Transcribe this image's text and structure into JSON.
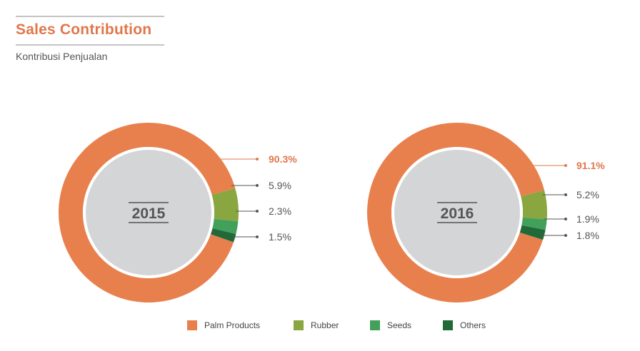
{
  "header": {
    "title": "Sales Contribution",
    "subtitle": "Kontribusi Penjualan"
  },
  "colors": {
    "accent": "#e0774a",
    "palm": "#e8804e",
    "rubber": "#8aa640",
    "seeds": "#42a05a",
    "others": "#22693a",
    "center": "#d4d5d6",
    "ring_gap": "#ffffff",
    "label_text": "#555555"
  },
  "chart_data": [
    {
      "type": "pie",
      "variant": "donut",
      "center_label": "2015",
      "categories": [
        "Palm Products",
        "Rubber",
        "Seeds",
        "Others"
      ],
      "values": [
        90.3,
        5.9,
        2.3,
        1.5
      ],
      "value_labels": [
        "90.3%",
        "5.9%",
        "2.3%",
        "1.5%"
      ]
    },
    {
      "type": "pie",
      "variant": "donut",
      "center_label": "2016",
      "categories": [
        "Palm Products",
        "Rubber",
        "Seeds",
        "Others"
      ],
      "values": [
        91.1,
        5.2,
        1.9,
        1.8
      ],
      "value_labels": [
        "91.1%",
        "5.2%",
        "1.9%",
        "1.8%"
      ]
    }
  ],
  "legend": {
    "position": "bottom",
    "items": [
      {
        "label": "Palm Products",
        "color": "#e8804e"
      },
      {
        "label": "Rubber",
        "color": "#8aa640"
      },
      {
        "label": "Seeds",
        "color": "#42a05a"
      },
      {
        "label": "Others",
        "color": "#22693a"
      }
    ]
  }
}
